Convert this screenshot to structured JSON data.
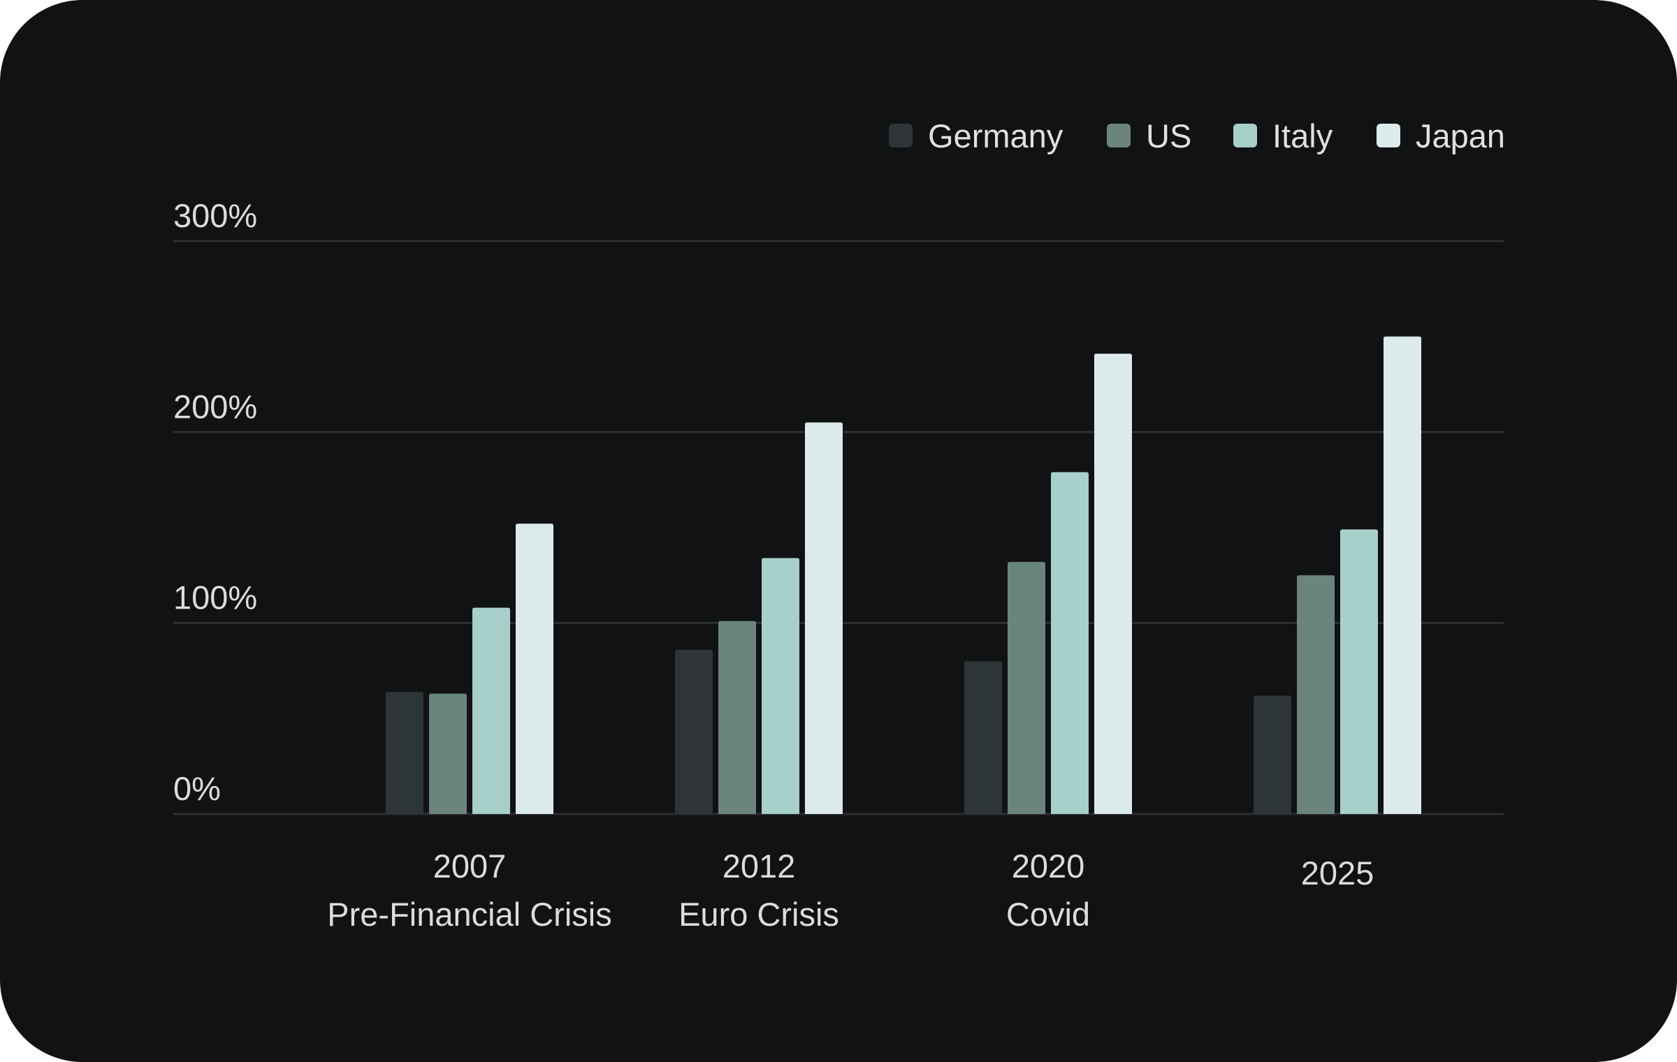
{
  "chart_data": {
    "type": "bar",
    "title": "",
    "xlabel": "",
    "ylabel": "",
    "ylim": [
      0,
      300
    ],
    "yticks": [
      0,
      100,
      200,
      300
    ],
    "ytick_labels": [
      "0%",
      "100%",
      "200%",
      "300%"
    ],
    "grid": true,
    "legend_position": "top-right",
    "categories": [
      {
        "year": "2007",
        "event": "Pre-Financial Crisis"
      },
      {
        "year": "2012",
        "event": "Euro Crisis"
      },
      {
        "year": "2020",
        "event": "Covid"
      },
      {
        "year": "2025",
        "event": ""
      }
    ],
    "series": [
      {
        "name": "Germany",
        "color": "#2d3536",
        "values": [
          64,
          86,
          80,
          62
        ]
      },
      {
        "name": "US",
        "color": "#6c847e",
        "values": [
          63,
          101,
          132,
          125
        ]
      },
      {
        "name": "Italy",
        "color": "#a8d0cb",
        "values": [
          108,
          134,
          179,
          149
        ]
      },
      {
        "name": "Japan",
        "color": "#dcebe9",
        "values": [
          152,
          205,
          241,
          250
        ]
      }
    ]
  }
}
